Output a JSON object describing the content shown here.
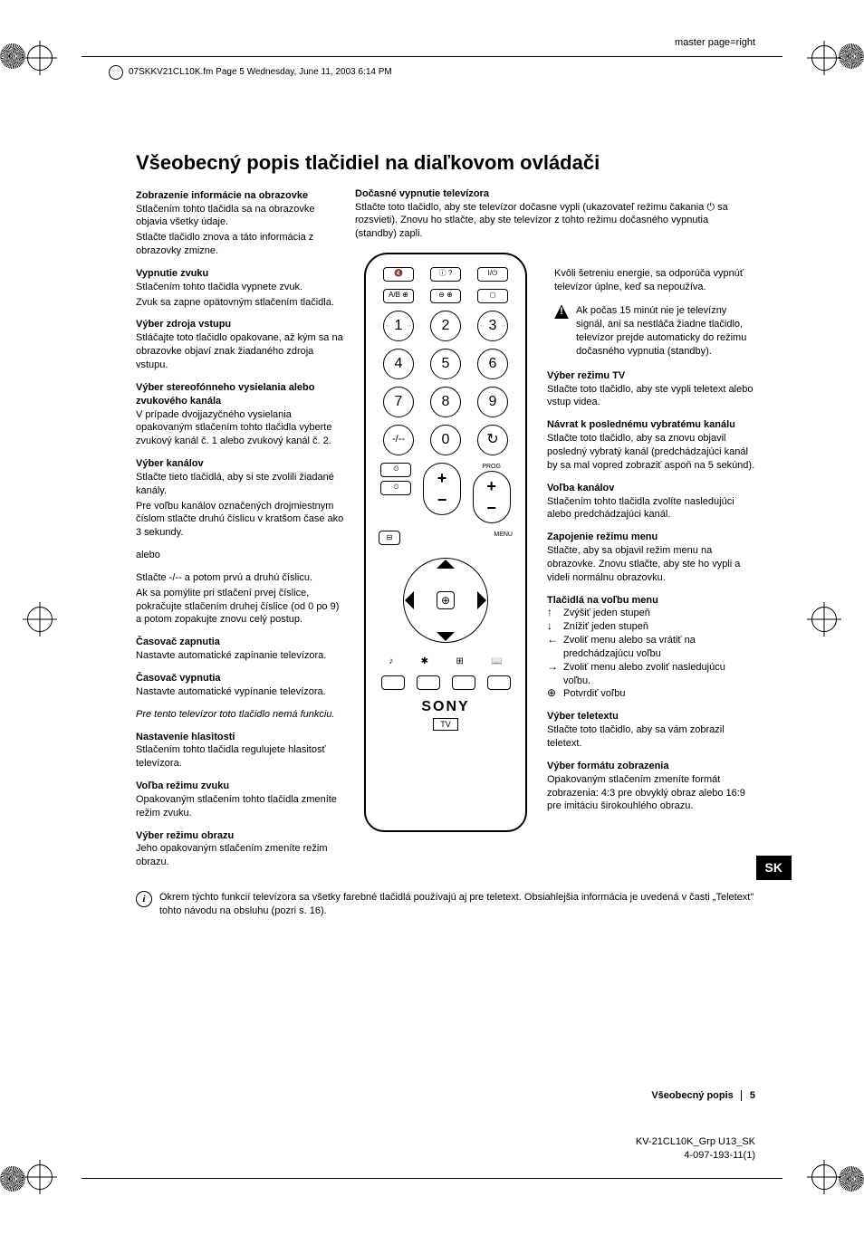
{
  "meta": {
    "master_page": "master page=right",
    "header_line": "07SKKV21CL10K.fm  Page 5  Wednesday, June 11, 2003  6:14 PM"
  },
  "title": "Všeobecný popis tlačidiel na diaľkovom ovládači",
  "left": [
    {
      "h": "Zobrazenie informácie na obrazovke",
      "p": [
        "Stlačením tohto tlačidla sa na obrazovke objavia všetky údaje.",
        "Stlačte tlačidlo znova a táto informácia z obrazovky zmizne."
      ]
    },
    {
      "h": "Vypnutie zvuku",
      "p": [
        "Stlačením tohto tlačidla vypnete zvuk.",
        "Zvuk sa zapne opätovným stlačením tlačidla."
      ]
    },
    {
      "h": "Výber zdroja vstupu",
      "p": [
        "Stláčajte toto tlačidlo opakovane, až kým sa na obrazovke objaví znak žiadaného zdroja vstupu."
      ]
    },
    {
      "h": "Výber stereofónneho vysielania alebo zvukového kanála",
      "p": [
        "V prípade dvojjazyčného vysielania opakovaným stlačením tohto tlačidla vyberte zvukový kanál č. 1 alebo zvukový kanál č. 2."
      ]
    },
    {
      "h": "Výber kanálov",
      "p": [
        "Stlačte tieto tlačidlá, aby si ste zvolili žiadané kanály.",
        "Pre voľbu kanálov označených drojmiestnym číslom stlačte druhú číslicu v kratšom čase ako 3 sekundy."
      ]
    },
    {
      "h": "",
      "p": [
        "alebo"
      ]
    },
    {
      "h": "",
      "p": [
        "Stlačte -/-- a potom prvú a druhú číslicu.",
        "Ak sa pomýlite pri stlačení prvej číslice, pokračujte stlačením druhej číslice (od 0 po 9) a potom zopakujte znovu celý postup."
      ]
    },
    {
      "h": "Časovač zapnutia",
      "p": [
        "Nastavte automatické zapínanie televízora."
      ]
    },
    {
      "h": "Časovač vypnutia",
      "p": [
        "Nastavte automatické vypínanie televízora."
      ]
    },
    {
      "h": "",
      "p_em": [
        "Pre tento televízor toto tlačidlo nemá funkciu."
      ]
    },
    {
      "h": "Nastavenie hlasitosti",
      "p": [
        "Stlačením tohto tlačidla regulujete hlasitosť televízora."
      ]
    },
    {
      "h": "Voľba režimu zvuku",
      "p": [
        "Opakovaným stlačením tohto tlačidla zmeníte režim zvuku."
      ]
    },
    {
      "h": "Výber režimu obrazu",
      "p": [
        "Jeho opakovaným stlačením zmeníte režim obrazu."
      ]
    }
  ],
  "top_center": {
    "h": "Dočasné vypnutie televízora",
    "p": [
      "Stlačte toto tlačidlo, aby ste televízor dočasne vypli (ukazovateľ režimu čakania ⏻ sa rozsvieti). Znovu ho stlačte, aby ste televízor z tohto režimu dočasného vypnutia (standby) zapli."
    ]
  },
  "right_intro": "Kvôli šetreniu energie, sa odporúča vypnúť televízor úplne, keď sa nepoužíva.",
  "right_warn": "Ak počas 15 minút nie je televízny signál, ani sa nestláča žiadne tlačidlo, televízor prejde automaticky do režimu dočasného vypnutia (standby).",
  "right": [
    {
      "h": "Výber režimu TV",
      "p": [
        "Stlačte toto tlačidlo, aby ste vypli teletext alebo vstup videa."
      ]
    },
    {
      "h": "Návrat k poslednému vybratému kanálu",
      "p": [
        "Stlačte toto tlačidlo, aby sa znovu objavil posledný vybratý kanál (predchádzajúci kanál by sa mal vopred zobraziť aspoň na 5 sekúnd)."
      ]
    },
    {
      "h": "Voľba kanálov",
      "p": [
        "Stlačením tohto tlačidla zvolíte nasledujúci alebo predchádzajúci kanál."
      ]
    },
    {
      "h": "Zapojenie režimu menu",
      "p": [
        "Stlačte, aby sa objavil režim menu na obrazovke. Znovu stlačte, aby ste ho vypli a videli normálnu obrazovku."
      ]
    }
  ],
  "menu_buttons": {
    "h": "Tlačidlá na voľbu menu",
    "items": [
      {
        "icon": "↑",
        "text": "Zvýšiť jeden stupeň"
      },
      {
        "icon": "↓",
        "text": "Znížiť jeden stupeň"
      },
      {
        "icon": "←",
        "text": "Zvoliť menu alebo sa vrátiť na predchádzajúcu voľbu"
      },
      {
        "icon": "→",
        "text": "Zvoliť menu alebo zvoliť nasledujúcu voľbu."
      },
      {
        "icon": "⊕",
        "text": "Potvrdiť voľbu"
      }
    ]
  },
  "right_tail": [
    {
      "h": "Výber teletextu",
      "p": [
        "Stlačte toto tlačidlo, aby sa vám zobrazil teletext."
      ]
    },
    {
      "h": "Výber formátu zobrazenia",
      "p": [
        "Opakovaným stlačením zmeníte formát zobrazenia: 4:3 pre obvyklý obraz alebo 16:9 pre imitáciu širokouhlého obrazu."
      ]
    }
  ],
  "remote": {
    "row1": [
      "🔇",
      "ⓘ ?",
      "I/⏻"
    ],
    "row2": [
      "A/B ⊕",
      "⊖ ⊕",
      "◻"
    ],
    "digits": [
      "1",
      "2",
      "3",
      "4",
      "5",
      "6",
      "7",
      "8",
      "9",
      "-/--",
      "0",
      "↻"
    ],
    "small_row_left": [
      "⏲",
      "🖼"
    ],
    "small_row_right": [
      "⏲",
      "🖵"
    ],
    "prog_label": "PROG",
    "menu_label": "MENU",
    "bottom_icons": [
      "♪",
      "✱",
      "⊞",
      "📖"
    ],
    "color_row": [
      "◻",
      "◻",
      "◻",
      "◻"
    ],
    "brand": "SONY",
    "tv": "TV"
  },
  "info_note": "Okrem týchto funkcií televízora sa všetky farebné tlačidlá používajú aj pre teletext. Obsiahlejšia informácia je uvedená v časti „Teletext\" tohto návodu na obsluhu (pozri s. 16).",
  "footer": {
    "section": "Všeobecný popis",
    "page": "5",
    "code1": "KV-21CL10K_Grp U13_SK",
    "code2": "4-097-193-11(1)"
  },
  "sk_tab": "SK"
}
